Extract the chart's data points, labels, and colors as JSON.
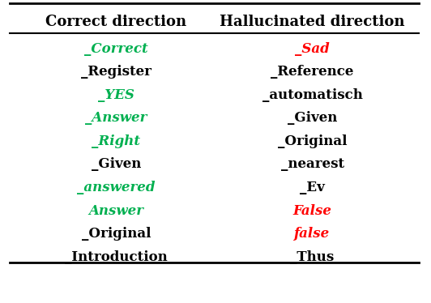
{
  "col1_header": "Correct direction",
  "col2_header": "Hallucinated direction",
  "rows": [
    {
      "col1": "_Correct",
      "col1_color": "#00b050",
      "col1_italic": true,
      "col2": "_Sad",
      "col2_color": "#ff0000",
      "col2_italic": true
    },
    {
      "col1": "_Register",
      "col1_color": "#000000",
      "col1_italic": false,
      "col2": "_Reference",
      "col2_color": "#000000",
      "col2_italic": false
    },
    {
      "col1": "_YES",
      "col1_color": "#00b050",
      "col1_italic": true,
      "col2": "_automatisch",
      "col2_color": "#000000",
      "col2_italic": false
    },
    {
      "col1": "_Answer",
      "col1_color": "#00b050",
      "col1_italic": true,
      "col2": "_Given",
      "col2_color": "#000000",
      "col2_italic": false
    },
    {
      "col1": "_Right",
      "col1_color": "#00b050",
      "col1_italic": true,
      "col2": "_Original",
      "col2_color": "#000000",
      "col2_italic": false
    },
    {
      "col1": "_Given",
      "col1_color": "#000000",
      "col1_italic": false,
      "col2": "_nearest",
      "col2_color": "#000000",
      "col2_italic": false
    },
    {
      "col1": "_answered",
      "col1_color": "#00b050",
      "col1_italic": true,
      "col2": "_Ev",
      "col2_color": "#000000",
      "col2_italic": false
    },
    {
      "col1": "Answer",
      "col1_color": "#00b050",
      "col1_italic": true,
      "col2": "False",
      "col2_color": "#ff0000",
      "col2_italic": true
    },
    {
      "col1": "_Original",
      "col1_color": "#000000",
      "col1_italic": false,
      "col2": "false",
      "col2_color": "#ff0000",
      "col2_italic": true
    },
    {
      "col1": "_Introduction",
      "col1_color": "#000000",
      "col1_italic": false,
      "col2": "_Thus",
      "col2_color": "#000000",
      "col2_italic": false
    }
  ],
  "background_color": "#ffffff",
  "header_fontsize": 13,
  "cell_fontsize": 12,
  "fig_width": 5.32,
  "fig_height": 3.74
}
